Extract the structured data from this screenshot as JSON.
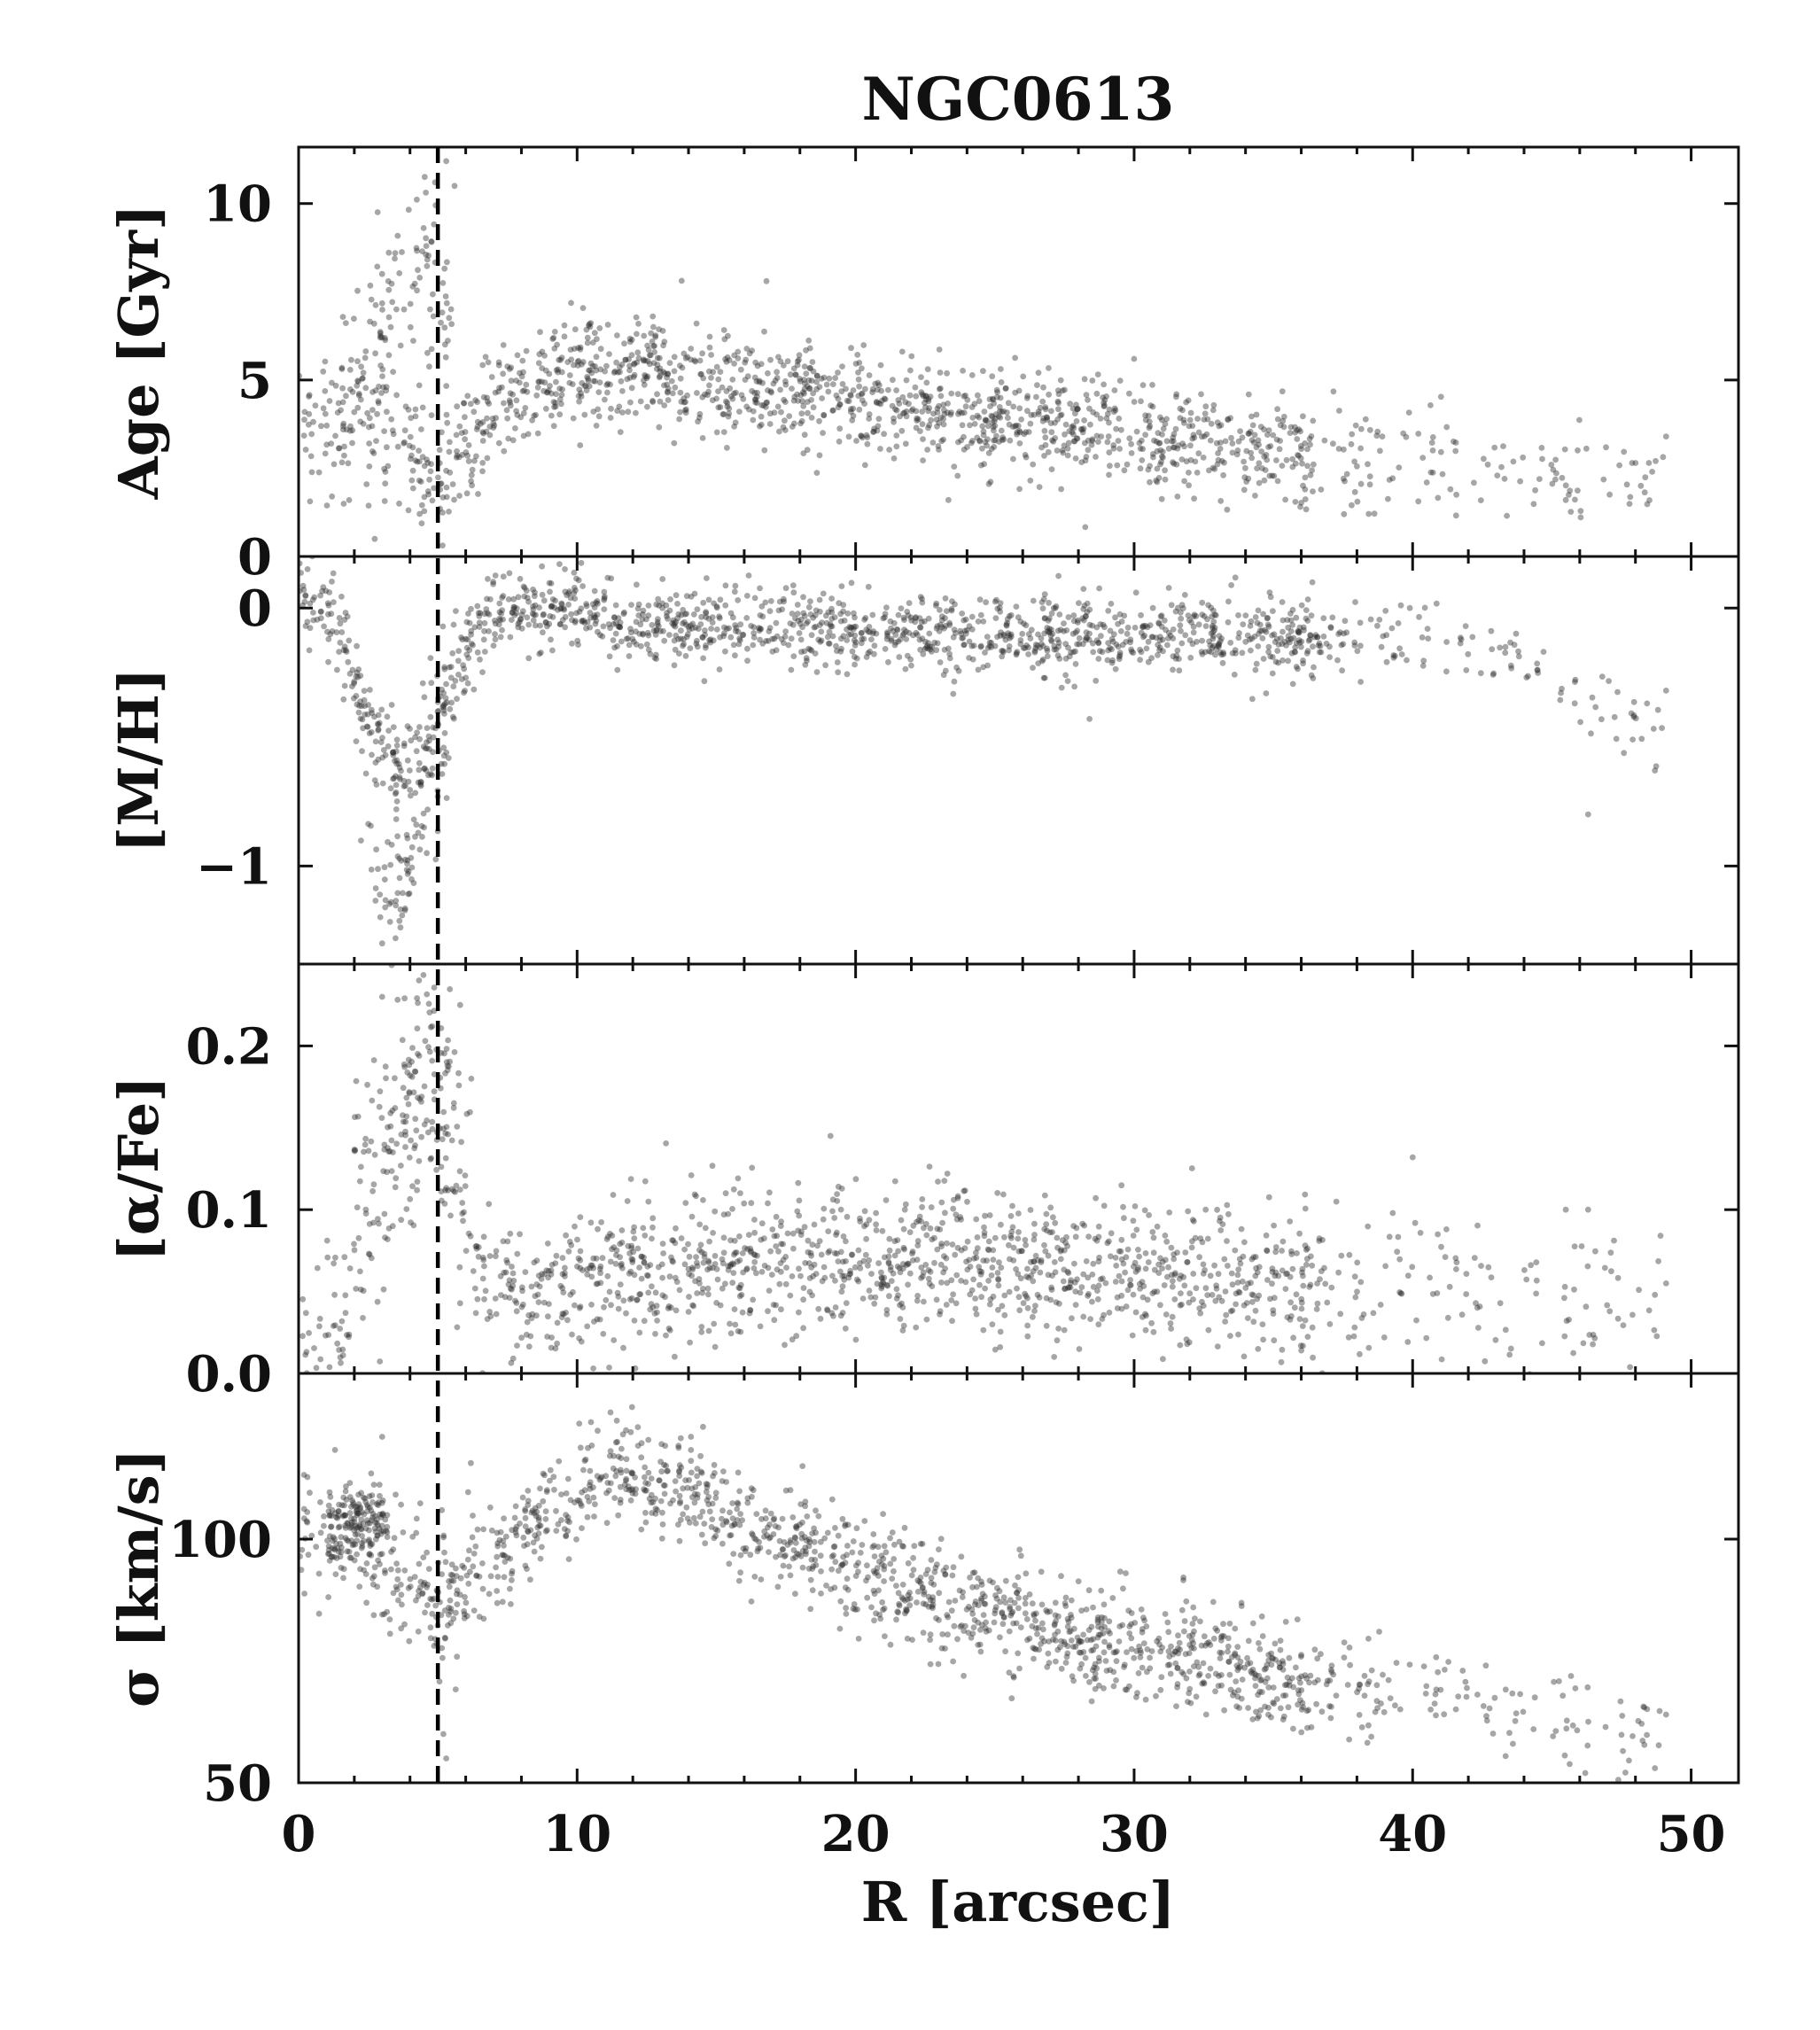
{
  "chart_data": {
    "type": "scatter",
    "title": "NGC0613",
    "xlabel": "R [arcsec]",
    "xlim": [
      0,
      51.7
    ],
    "xticks": [
      0,
      10,
      20,
      30,
      40,
      50
    ],
    "xtick_labels": [
      "0",
      "10",
      "20",
      "30",
      "40",
      "50"
    ],
    "shared_x": true,
    "point_color": "#2b2b2b",
    "point_opacity": 0.42,
    "reference_line": {
      "x": 5,
      "style": "dashed",
      "color": "#000000"
    },
    "panels": [
      {
        "id": "age",
        "ylabel": "Age [Gyr]",
        "ylim": [
          0,
          11.6
        ],
        "yticks": [
          0,
          5,
          10
        ],
        "ytick_labels": [
          "0",
          "5",
          "10"
        ],
        "trend": [
          [
            0,
            3.6
          ],
          [
            1,
            3.4
          ],
          [
            1.5,
            3.5
          ],
          [
            2,
            3.7
          ],
          [
            2.5,
            3.9
          ],
          [
            3,
            4.2
          ],
          [
            3.5,
            3.8
          ],
          [
            4,
            3.3
          ],
          [
            4.5,
            2.6
          ],
          [
            5,
            2.1
          ],
          [
            5.5,
            2.5
          ],
          [
            6,
            3.2
          ],
          [
            7,
            4.0
          ],
          [
            8,
            4.6
          ],
          [
            9,
            5.0
          ],
          [
            10,
            5.2
          ],
          [
            11,
            5.3
          ],
          [
            12,
            5.25
          ],
          [
            14,
            5.1
          ],
          [
            16,
            4.85
          ],
          [
            18,
            4.6
          ],
          [
            20,
            4.4
          ],
          [
            22,
            4.1
          ],
          [
            24,
            3.9
          ],
          [
            26,
            3.75
          ],
          [
            28,
            3.6
          ],
          [
            30,
            3.45
          ],
          [
            32,
            3.2
          ],
          [
            34,
            3.0
          ],
          [
            36,
            2.85
          ],
          [
            38,
            2.7
          ],
          [
            40,
            2.6
          ],
          [
            42,
            2.5
          ],
          [
            44,
            2.3
          ],
          [
            46,
            2.2
          ],
          [
            49,
            2.2
          ]
        ],
        "scatter_sd": 0.75,
        "extra_branch": {
          "x": [
            1.5,
            5.5
          ],
          "peak_x": 4.2,
          "base": 4.5,
          "peak": 8.5,
          "sd": 1.2,
          "count": 110
        },
        "outliers": [
          [
            4.9,
            10.6
          ],
          [
            5.3,
            11.2
          ],
          [
            5.6,
            10.5
          ],
          [
            16.8,
            7.8
          ],
          [
            30,
            5.6
          ],
          [
            43.3,
            2.2
          ],
          [
            45.5,
            1.6
          ],
          [
            48.6,
            2.4
          ],
          [
            49.1,
            3.4
          ]
        ],
        "n": 1500
      },
      {
        "id": "mh",
        "ylabel": "[M/H]",
        "ylim": [
          -1.38,
          0.2
        ],
        "yticks": [
          -1,
          0
        ],
        "ytick_labels": [
          "−1",
          "0"
        ],
        "trend": [
          [
            0,
            0.05
          ],
          [
            0.5,
            0.05
          ],
          [
            1,
            0.0
          ],
          [
            1.5,
            -0.1
          ],
          [
            2,
            -0.25
          ],
          [
            2.5,
            -0.42
          ],
          [
            3,
            -0.55
          ],
          [
            3.5,
            -0.62
          ],
          [
            4,
            -0.58
          ],
          [
            4.5,
            -0.5
          ],
          [
            5,
            -0.4
          ],
          [
            5.5,
            -0.28
          ],
          [
            6,
            -0.15
          ],
          [
            6.5,
            -0.05
          ],
          [
            7,
            -0.02
          ],
          [
            8,
            0.0
          ],
          [
            9,
            0.0
          ],
          [
            10,
            -0.02
          ],
          [
            12,
            -0.05
          ],
          [
            14,
            -0.07
          ],
          [
            16,
            -0.08
          ],
          [
            18,
            -0.1
          ],
          [
            20,
            -0.1
          ],
          [
            24,
            -0.1
          ],
          [
            28,
            -0.11
          ],
          [
            32,
            -0.1
          ],
          [
            36,
            -0.12
          ],
          [
            40,
            -0.12
          ],
          [
            44,
            -0.2
          ],
          [
            46,
            -0.35
          ],
          [
            49,
            -0.45
          ]
        ],
        "scatter_sd": 0.075,
        "extra_branch": {
          "x": [
            2.2,
            5.4
          ],
          "peak_x": 3.4,
          "base": -0.5,
          "peak": -1.1,
          "sd": 0.13,
          "count": 90
        },
        "outliers": [
          [
            3.0,
            -1.3
          ],
          [
            4.6,
            -0.95
          ],
          [
            28.4,
            -0.43
          ],
          [
            46.3,
            -0.8
          ],
          [
            48.7,
            -0.63
          ],
          [
            49.1,
            -0.32
          ],
          [
            36.4,
            0.1
          ],
          [
            39.9,
            0.0
          ]
        ],
        "n": 1500
      },
      {
        "id": "afe",
        "ylabel": "[α/Fe]",
        "ylim": [
          0,
          0.25
        ],
        "yticks": [
          0,
          0.1,
          0.2
        ],
        "ytick_labels": [
          "0.0",
          "0.1",
          "0.2"
        ],
        "trend": [
          [
            0,
            0.0
          ],
          [
            0.5,
            0.005
          ],
          [
            1,
            0.015
          ],
          [
            1.5,
            0.03
          ],
          [
            2,
            0.05
          ],
          [
            2.5,
            0.08
          ],
          [
            3,
            0.11
          ],
          [
            3.5,
            0.13
          ],
          [
            4,
            0.14
          ],
          [
            4.5,
            0.15
          ],
          [
            5,
            0.15
          ],
          [
            5.5,
            0.12
          ],
          [
            6,
            0.09
          ],
          [
            6.5,
            0.065
          ],
          [
            7,
            0.055
          ],
          [
            8,
            0.045
          ],
          [
            9,
            0.045
          ],
          [
            10,
            0.05
          ],
          [
            12,
            0.06
          ],
          [
            14,
            0.065
          ],
          [
            16,
            0.068
          ],
          [
            18,
            0.07
          ],
          [
            20,
            0.07
          ],
          [
            24,
            0.068
          ],
          [
            28,
            0.065
          ],
          [
            32,
            0.06
          ],
          [
            36,
            0.055
          ],
          [
            40,
            0.05
          ],
          [
            44,
            0.045
          ],
          [
            49,
            0.05
          ]
        ],
        "scatter_sd": 0.022,
        "extra_branch": {
          "x": [
            2.0,
            5.8
          ],
          "peak_x": 4.3,
          "base": 0.13,
          "peak": 0.2,
          "sd": 0.025,
          "count": 80
        },
        "outliers": [
          [
            19.1,
            0.145
          ],
          [
            40.0,
            0.132
          ],
          [
            45.5,
            0.1
          ],
          [
            46.3,
            0.1
          ],
          [
            48.7,
            0.048
          ],
          [
            49.1,
            0.055
          ],
          [
            3.0,
            0.23
          ],
          [
            5.8,
            0.225
          ],
          [
            6.2,
            0.18
          ]
        ],
        "n": 1500
      },
      {
        "id": "sigma",
        "ylabel": "σ [km/s]",
        "ylim": [
          50,
          134
        ],
        "ylog": false,
        "yticks": [
          50,
          100
        ],
        "ytick_labels": [
          "50",
          "100"
        ],
        "trend": [
          [
            0,
            100
          ],
          [
            0.5,
            100
          ],
          [
            1,
            101
          ],
          [
            1.5,
            101
          ],
          [
            2,
            100
          ],
          [
            2.5,
            99
          ],
          [
            3,
            96
          ],
          [
            3.5,
            93
          ],
          [
            4,
            91
          ],
          [
            4.5,
            89
          ],
          [
            5,
            88
          ],
          [
            5.5,
            89
          ],
          [
            6,
            91
          ],
          [
            7,
            95
          ],
          [
            8,
            100
          ],
          [
            9,
            106
          ],
          [
            10,
            110
          ],
          [
            11,
            113
          ],
          [
            12,
            114
          ],
          [
            13,
            113
          ],
          [
            14,
            110
          ],
          [
            15,
            107
          ],
          [
            16,
            103
          ],
          [
            18,
            98
          ],
          [
            20,
            94
          ],
          [
            22,
            90
          ],
          [
            24,
            86
          ],
          [
            26,
            83
          ],
          [
            28,
            80
          ],
          [
            30,
            78
          ],
          [
            32,
            76
          ],
          [
            34,
            73
          ],
          [
            36,
            71
          ],
          [
            38,
            69
          ],
          [
            40,
            68
          ],
          [
            42,
            67
          ],
          [
            44,
            64
          ],
          [
            46,
            62
          ],
          [
            49,
            60
          ]
        ],
        "scatter_sd": 5.2,
        "extra_branch": {
          "x": [
            1.0,
            3.2
          ],
          "peak_x": 2.2,
          "base": 100,
          "peak": 105,
          "sd": 3.0,
          "count": 120
        },
        "outliers": [
          [
            3.0,
            121
          ],
          [
            10.5,
            124
          ],
          [
            11.2,
            126
          ],
          [
            5.2,
            60
          ],
          [
            5.3,
            55
          ],
          [
            43.6,
            58
          ],
          [
            46.2,
            52
          ],
          [
            48.7,
            53
          ],
          [
            49.1,
            64
          ],
          [
            41.8,
            73
          ],
          [
            38.8,
            81
          ],
          [
            29.7,
            93
          ]
        ],
        "n": 1500
      }
    ]
  }
}
